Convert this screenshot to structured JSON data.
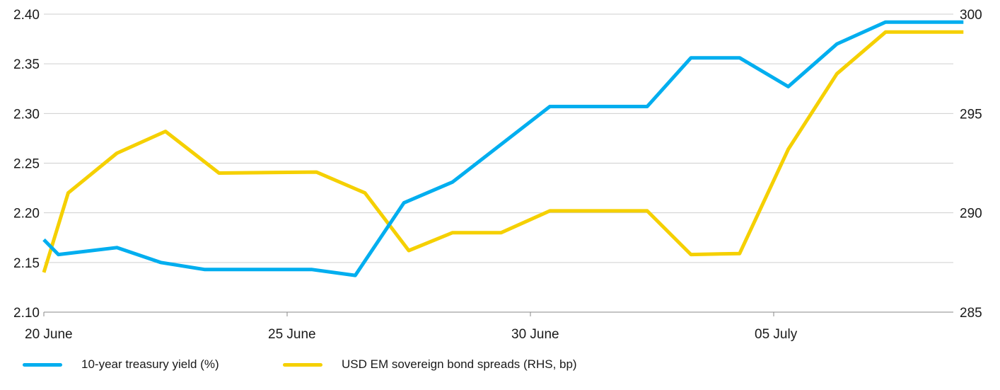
{
  "colors": {
    "treasury": "#00AEEF",
    "spreads": "#F5D000",
    "grid": "#cfcfcf",
    "axis": "#888888"
  },
  "chart_data": {
    "type": "line",
    "x": [
      "20 June",
      "21 June",
      "22 June",
      "23 June",
      "24 June",
      "25 June",
      "26 June",
      "27 June",
      "28 June",
      "29 June",
      "30 June",
      "01 July",
      "02 July",
      "03 July",
      "04 July",
      "05 July",
      "06 July",
      "07 July",
      "08 July",
      "09 July"
    ],
    "x_tick_labels": [
      "20 June",
      "25 June",
      "30 June",
      "05 July"
    ],
    "y_left": {
      "lim": [
        2.1,
        2.4
      ],
      "ticks": [
        "2.10",
        "2.15",
        "2.20",
        "2.25",
        "2.30",
        "2.35",
        "2.40"
      ]
    },
    "y_right": {
      "lim": [
        285,
        300
      ],
      "ticks": [
        "285",
        "290",
        "295",
        "300"
      ]
    },
    "series": [
      {
        "name": "10-year treasury yield (%)",
        "axis": "left",
        "points": [
          [
            0,
            2.173
          ],
          [
            0.3,
            2.158
          ],
          [
            1.5,
            2.165
          ],
          [
            2.4,
            2.15
          ],
          [
            3.3,
            2.143
          ],
          [
            5.5,
            2.143
          ],
          [
            6.4,
            2.137
          ],
          [
            7.4,
            2.21
          ],
          [
            8.4,
            2.231
          ],
          [
            10.4,
            2.307
          ],
          [
            12.4,
            2.307
          ],
          [
            13.3,
            2.356
          ],
          [
            14.3,
            2.356
          ],
          [
            15.3,
            2.327
          ],
          [
            16.3,
            2.37
          ],
          [
            17.3,
            2.392
          ],
          [
            18.9,
            2.392
          ]
        ]
      },
      {
        "name": "USD EM sovereign bond spreads (RHS, bp)",
        "axis": "right",
        "points": [
          [
            0,
            287.0
          ],
          [
            0.5,
            291.0
          ],
          [
            1.5,
            293.0
          ],
          [
            2.5,
            294.1
          ],
          [
            3.6,
            292.0
          ],
          [
            5.6,
            292.05
          ],
          [
            6.6,
            291.0
          ],
          [
            7.5,
            288.1
          ],
          [
            8.4,
            289.0
          ],
          [
            9.4,
            289.0
          ],
          [
            10.4,
            290.1
          ],
          [
            12.4,
            290.1
          ],
          [
            13.3,
            287.9
          ],
          [
            14.3,
            287.95
          ],
          [
            15.3,
            293.2
          ],
          [
            16.3,
            297.0
          ],
          [
            17.3,
            299.1
          ],
          [
            18.9,
            299.1
          ]
        ]
      }
    ]
  },
  "legend": {
    "treasury_label": "10-year treasury yield (%)",
    "spreads_label": "USD EM sovereign bond spreads (RHS, bp)"
  }
}
